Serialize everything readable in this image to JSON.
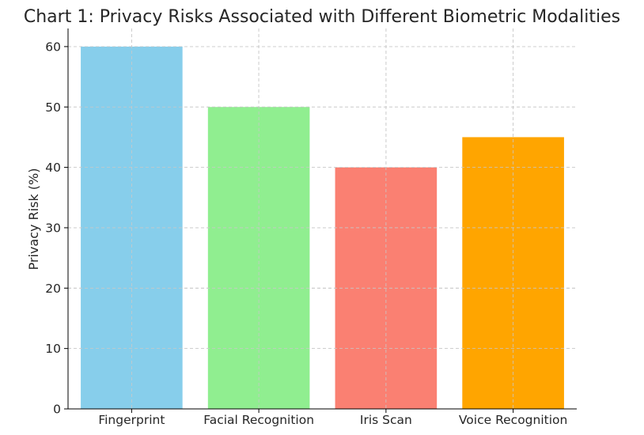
{
  "chart_data": {
    "type": "bar",
    "title": "Chart 1: Privacy Risks Associated with Different Biometric Modalities",
    "xlabel": "",
    "ylabel": "Privacy Risk (%)",
    "categories": [
      "Fingerprint",
      "Facial Recognition",
      "Iris Scan",
      "Voice Recognition"
    ],
    "values": [
      60,
      50,
      40,
      45
    ],
    "colors": [
      "#87ceeb",
      "#90ee90",
      "#fa8072",
      "#ffa500"
    ],
    "ylim": [
      0,
      63
    ],
    "yticks": [
      0,
      10,
      20,
      30,
      40,
      50,
      60
    ],
    "grid": true,
    "legend": "none"
  }
}
